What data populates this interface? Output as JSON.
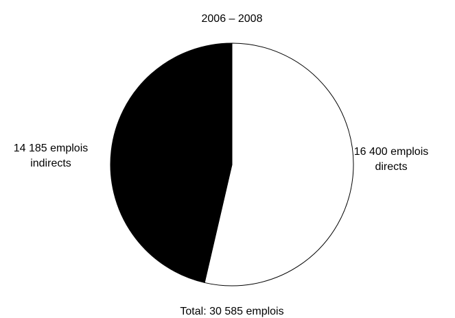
{
  "chart_data": {
    "type": "pie",
    "title": "2006 – 2008",
    "slices": [
      {
        "label_line1": "16 400 emplois",
        "label_line2": "directs",
        "value": 16400,
        "color": "#ffffff"
      },
      {
        "label_line1": "14 185 emplois",
        "label_line2": "indirects",
        "value": 14185,
        "color": "#000000"
      }
    ],
    "total_label": "Total:  30 585 emplois",
    "start": "12 o'clock",
    "direction": "clockwise"
  }
}
